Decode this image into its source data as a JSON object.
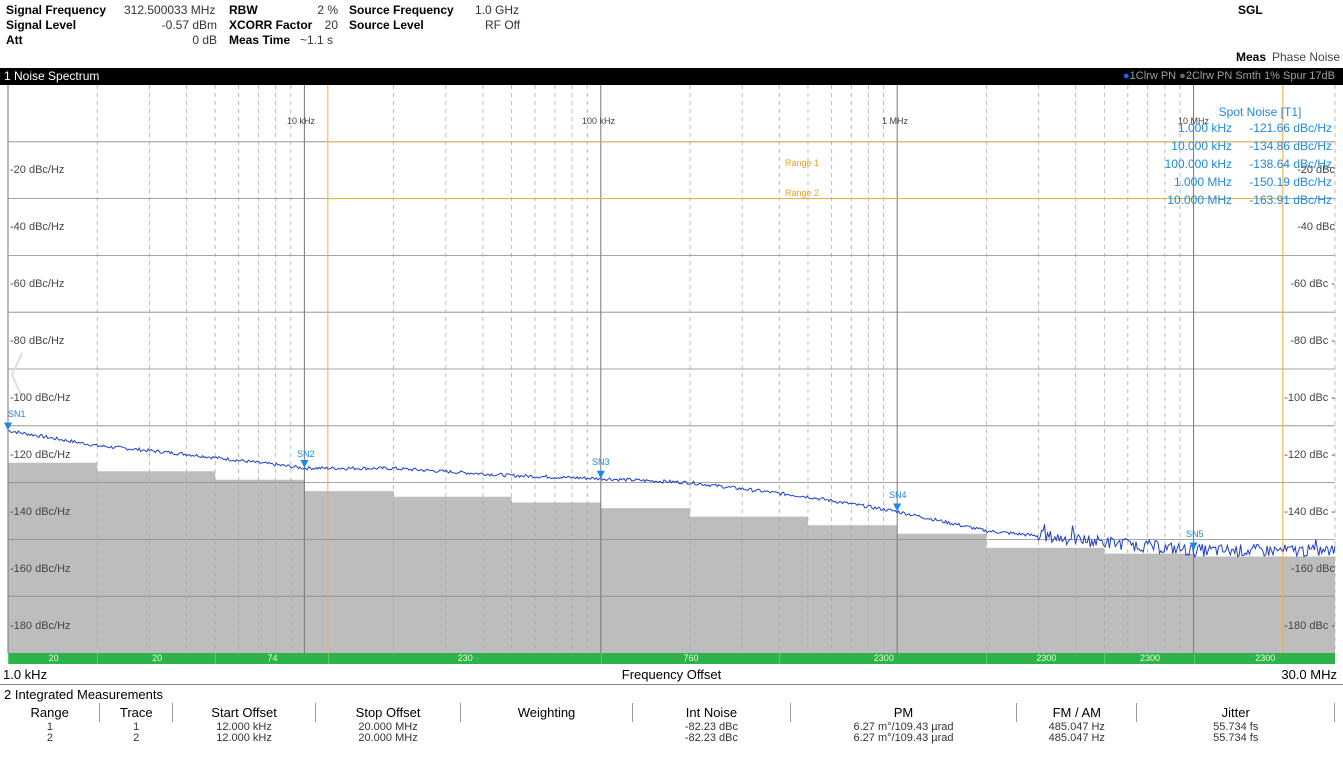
{
  "header": {
    "signal_frequency_label": "Signal Frequency",
    "signal_frequency_value": "312.500033 MHz",
    "signal_level_label": "Signal Level",
    "signal_level_value": "-0.57 dBm",
    "att_label": "Att",
    "att_value": "0 dB",
    "rbw_label": "RBW",
    "rbw_value": "2 %",
    "xcorr_label": "XCORR Factor",
    "xcorr_value": "20",
    "meas_time_label": "Meas Time",
    "meas_time_value": "~1.1 s",
    "source_freq_label": "Source Frequency",
    "source_freq_value": "1.0 GHz",
    "source_level_label": "Source Level",
    "source_level_value": "RF Off",
    "sgl": "SGL",
    "meas_label": "Meas",
    "meas_value": "Phase Noise"
  },
  "title_bar": {
    "title": "1 Noise Spectrum",
    "traces_prefix": "●",
    "trace1": "1Clrw PN",
    "trace2_prefix": "●",
    "trace2": "2Clrw PN Smth 1% Spur 17dB"
  },
  "plot": {
    "y_labels_left": [
      "-20 dBc/Hz",
      "-40 dBc/Hz",
      "-60 dBc/Hz",
      "-80 dBc/Hz",
      "-100 dBc/Hz",
      "-120 dBc/Hz",
      "-140 dBc/Hz",
      "-160 dBc/Hz",
      "-180 dBc/Hz"
    ],
    "y_labels_right": [
      "-20 dBc",
      "-40 dBc",
      "-60 dBc -",
      "-80 dBc -",
      "-100 dBc -",
      "-120 dBc -",
      "-140 dBc -",
      "-160 dBc",
      "-180 dBc -"
    ],
    "decade_labels": [
      "10 kHz",
      "100 kHz",
      "1 MHz",
      "10 MHz"
    ],
    "range1": "Range 1",
    "range2": "Range 2",
    "spot_noise": {
      "title": "Spot Noise [T1]",
      "rows": [
        {
          "freq": "1.000 kHz",
          "value": "-121.66 dBc/Hz"
        },
        {
          "freq": "10.000 kHz",
          "value": "-134.86 dBc/Hz"
        },
        {
          "freq": "100.000 kHz",
          "value": "-138.64 dBc/Hz"
        },
        {
          "freq": "1.000 MHz",
          "value": "-150.19 dBc/Hz"
        },
        {
          "freq": "10.000 MHz",
          "value": "-163.91 dBc/Hz"
        }
      ]
    },
    "markers": [
      "SN1",
      "SN2",
      "SN3",
      "SN4",
      "SN5"
    ]
  },
  "green_bar": [
    "20",
    "20",
    "74",
    "230",
    "760",
    "2300",
    "2300",
    "2300",
    "2300"
  ],
  "x_axis": {
    "start": "1.0 kHz",
    "label": "Frequency Offset",
    "end": "30.0 MHz"
  },
  "integrated": {
    "title": "2 Integrated Measurements",
    "headers": [
      "Range",
      "Trace",
      "Start Offset",
      "Stop Offset",
      "Weighting",
      "Int Noise",
      "PM",
      "FM / AM",
      "Jitter"
    ],
    "rows": [
      [
        "1",
        "1",
        "12.000 kHz",
        "20.000 MHz",
        "",
        "-82.23 dBc",
        "6.27 m°/109.43 µrad",
        "485.047 Hz",
        "55.734 fs"
      ],
      [
        "2",
        "2",
        "12.000 kHz",
        "20.000 MHz",
        "",
        "-82.23 dBc",
        "6.27 m°/109.43 µrad",
        "485.047 Hz",
        "55.734 fs"
      ]
    ]
  },
  "colors": {
    "trace": "#1f3fd0",
    "trace_noisy": "#2b5bd6",
    "floor": "#bdbdbd",
    "range_line": "#f0b040",
    "marker": "#1e88e5",
    "green_bar": "#2db34a"
  },
  "chart_data": {
    "type": "line",
    "x_scale": "log",
    "x_range": [
      "1.0 kHz",
      "30.0 MHz"
    ],
    "y_range_dbc_hz": [
      -200,
      0
    ],
    "ylabel": "",
    "xlabel": "Frequency Offset",
    "series": [
      {
        "name": "1Clrw PN",
        "points_hz_dbc": [
          [
            1000,
            -121.7
          ],
          [
            2000,
            -127
          ],
          [
            4000,
            -130
          ],
          [
            10000,
            -134.9
          ],
          [
            20000,
            -135
          ],
          [
            50000,
            -137.5
          ],
          [
            100000,
            -138.6
          ],
          [
            200000,
            -140
          ],
          [
            500000,
            -145
          ],
          [
            1000000,
            -150.2
          ],
          [
            2000000,
            -157
          ],
          [
            4000000,
            -160
          ],
          [
            10000000,
            -163.9
          ],
          [
            30000000,
            -164
          ]
        ]
      }
    ],
    "markers": [
      {
        "name": "SN1",
        "x_hz": 1000,
        "y": -121.66
      },
      {
        "name": "SN2",
        "x_hz": 10000,
        "y": -134.86
      },
      {
        "name": "SN3",
        "x_hz": 100000,
        "y": -138.64
      },
      {
        "name": "SN4",
        "x_hz": 1000000,
        "y": -150.19
      },
      {
        "name": "SN5",
        "x_hz": 10000000,
        "y": -163.91
      }
    ],
    "ranges": [
      {
        "name": "Range 1",
        "y": -20,
        "start_hz": 12000,
        "stop_hz": 20000000
      },
      {
        "name": "Range 2",
        "y": -40,
        "start_hz": 12000,
        "stop_hz": 20000000
      }
    ]
  }
}
